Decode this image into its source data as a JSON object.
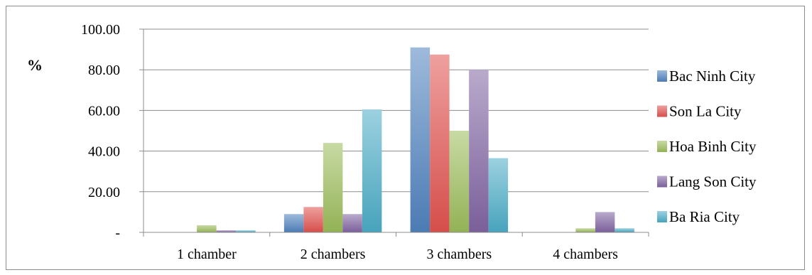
{
  "chart_data": {
    "type": "bar",
    "title": "",
    "xlabel": "",
    "ylabel": "%",
    "ylim": [
      0,
      100
    ],
    "yticks": [
      0,
      20,
      40,
      60,
      80,
      100
    ],
    "ytick_labels": [
      "-",
      "20.00",
      "40.00",
      "60.00",
      "80.00",
      "100.00"
    ],
    "grid": true,
    "legend_position": "right",
    "categories": [
      "1 chamber",
      "2 chambers",
      "3 chambers",
      "4  chambers"
    ],
    "series": [
      {
        "name": "Bac Ninh City",
        "color": "#4f81bd",
        "values": [
          0,
          9,
          91,
          0
        ]
      },
      {
        "name": "Son La City",
        "color": "#e0524f",
        "values": [
          0,
          12.5,
          87.5,
          0
        ]
      },
      {
        "name": "Hoa Binh City",
        "color": "#9bbb59",
        "values": [
          3.5,
          44,
          50,
          2
        ]
      },
      {
        "name": "Lang Son City",
        "color": "#8064a2",
        "values": [
          1,
          9,
          80,
          10
        ]
      },
      {
        "name": "Ba Ria City",
        "color": "#4bacc6",
        "values": [
          1,
          60.5,
          36.5,
          2
        ]
      }
    ]
  }
}
